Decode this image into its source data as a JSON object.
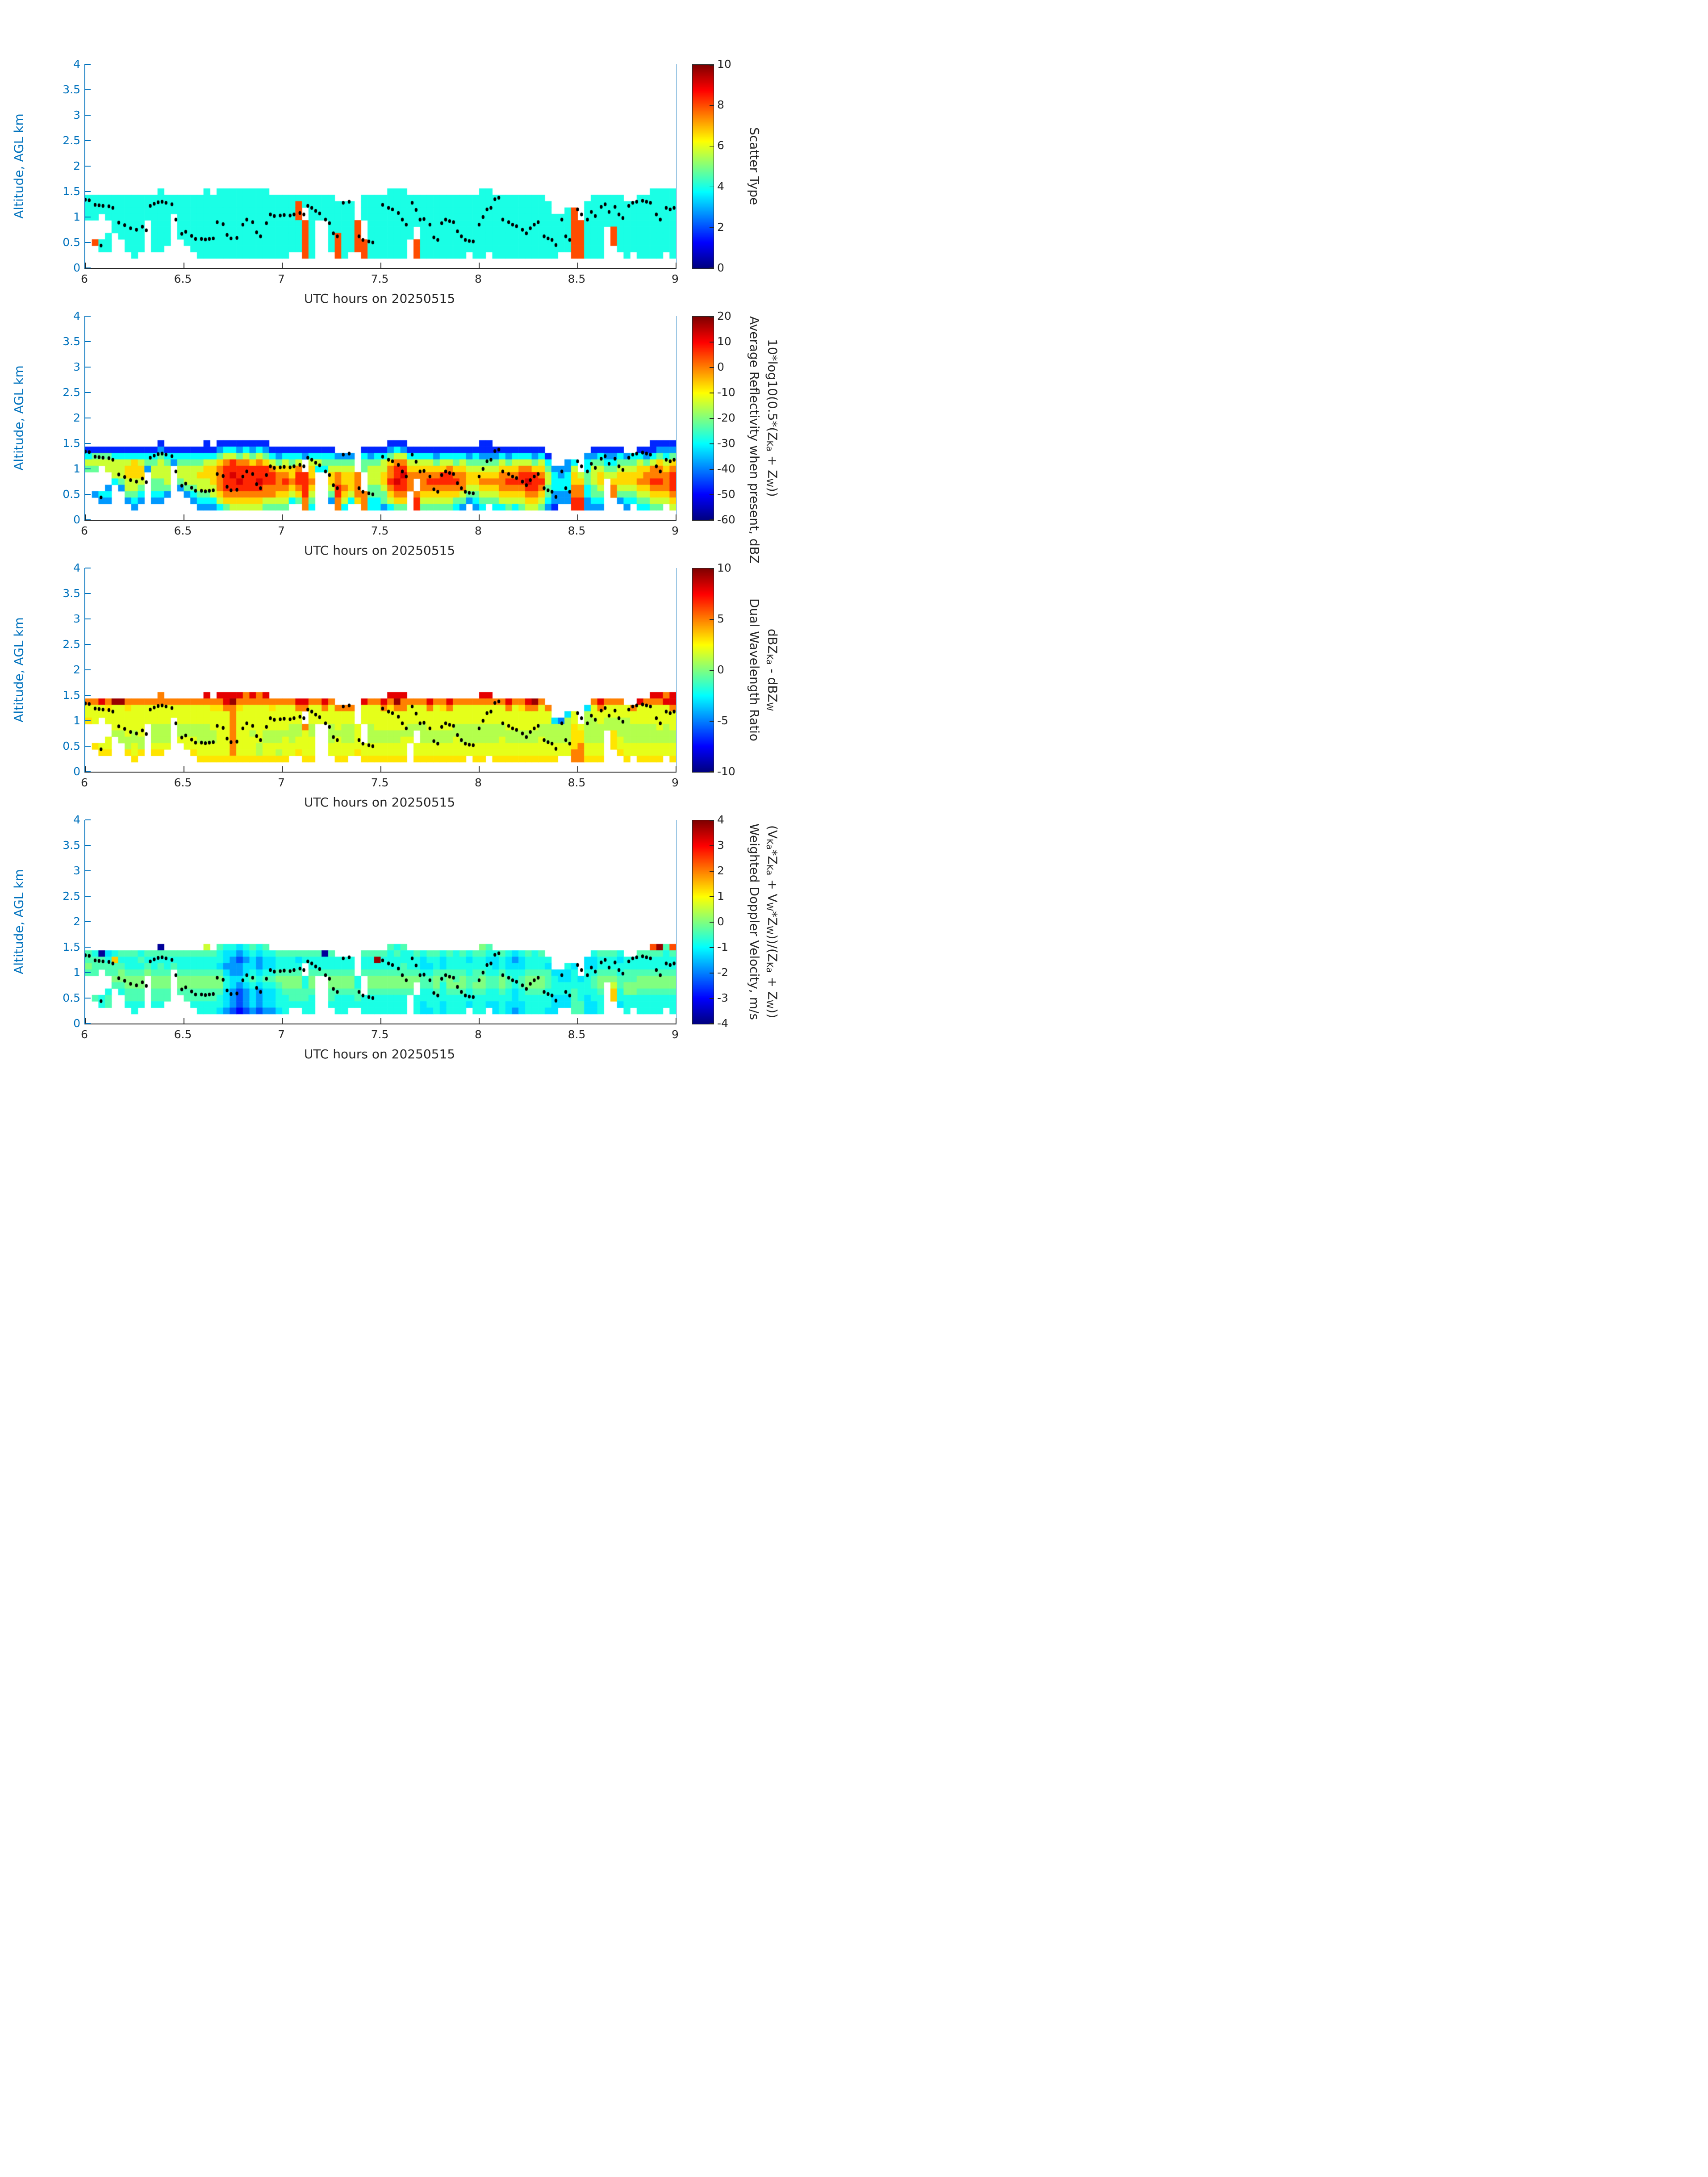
{
  "figure": {
    "background": "#ffffff",
    "date_tag": "20250515"
  },
  "axes": {
    "ylabel": "Altitude, AGL km",
    "xlabel": "UTC hours on 20250515",
    "ylim": [
      0,
      4
    ],
    "xlim": [
      6,
      9
    ],
    "yticks": [
      {
        "v": 4,
        "label": "4"
      },
      {
        "v": 3.5,
        "label": "3.5"
      },
      {
        "v": 3,
        "label": "3"
      },
      {
        "v": 2.5,
        "label": "2.5"
      },
      {
        "v": 2,
        "label": "2"
      },
      {
        "v": 1.5,
        "label": "1.5"
      },
      {
        "v": 1,
        "label": "1"
      },
      {
        "v": 0.5,
        "label": "0.5"
      },
      {
        "v": 0,
        "label": "0"
      }
    ],
    "xticks": [
      {
        "v": 6,
        "label": "6"
      },
      {
        "v": 6.5,
        "label": "6.5"
      },
      {
        "v": 7,
        "label": "7"
      },
      {
        "v": 7.5,
        "label": "7.5"
      },
      {
        "v": 8,
        "label": "8"
      },
      {
        "v": 8.5,
        "label": "8.5"
      },
      {
        "v": 9,
        "label": "9"
      }
    ],
    "colors": {
      "axis_blue": "#0072BD",
      "axis_dark": "#262626",
      "dot": "#000000",
      "colormap": "jet"
    }
  },
  "dot_overlay": {
    "description": "black dot overlay track, [UTC hour, altitude km], same in all panels",
    "points": [
      [
        6.0,
        1.34
      ],
      [
        6.02,
        1.33
      ],
      [
        6.05,
        1.24
      ],
      [
        6.07,
        1.23
      ],
      [
        6.08,
        0.44
      ],
      [
        6.09,
        1.22
      ],
      [
        6.12,
        1.21
      ],
      [
        6.14,
        1.18
      ],
      [
        6.17,
        0.89
      ],
      [
        6.2,
        0.84
      ],
      [
        6.23,
        0.78
      ],
      [
        6.26,
        0.75
      ],
      [
        6.29,
        0.81
      ],
      [
        6.31,
        0.74
      ],
      [
        6.33,
        1.22
      ],
      [
        6.35,
        1.26
      ],
      [
        6.37,
        1.29
      ],
      [
        6.39,
        1.3
      ],
      [
        6.41,
        1.28
      ],
      [
        6.44,
        1.25
      ],
      [
        6.46,
        0.95
      ],
      [
        6.49,
        0.67
      ],
      [
        6.51,
        0.71
      ],
      [
        6.54,
        0.63
      ],
      [
        6.56,
        0.57
      ],
      [
        6.59,
        0.57
      ],
      [
        6.61,
        0.56
      ],
      [
        6.63,
        0.57
      ],
      [
        6.65,
        0.58
      ],
      [
        6.67,
        0.9
      ],
      [
        6.7,
        0.86
      ],
      [
        6.72,
        0.65
      ],
      [
        6.74,
        0.58
      ],
      [
        6.77,
        0.59
      ],
      [
        6.8,
        0.85
      ],
      [
        6.82,
        0.95
      ],
      [
        6.85,
        0.9
      ],
      [
        6.87,
        0.7
      ],
      [
        6.89,
        0.62
      ],
      [
        6.92,
        0.88
      ],
      [
        6.94,
        1.05
      ],
      [
        6.96,
        1.02
      ],
      [
        6.99,
        1.03
      ],
      [
        7.01,
        1.04
      ],
      [
        7.04,
        1.03
      ],
      [
        7.06,
        1.05
      ],
      [
        7.09,
        1.08
      ],
      [
        7.11,
        1.05
      ],
      [
        7.13,
        1.22
      ],
      [
        7.15,
        1.18
      ],
      [
        7.17,
        1.12
      ],
      [
        7.19,
        1.07
      ],
      [
        7.22,
        0.95
      ],
      [
        7.24,
        0.88
      ],
      [
        7.26,
        0.68
      ],
      [
        7.28,
        0.62
      ],
      [
        7.31,
        1.28
      ],
      [
        7.34,
        1.3
      ],
      [
        7.39,
        0.62
      ],
      [
        7.41,
        0.55
      ],
      [
        7.44,
        0.52
      ],
      [
        7.46,
        0.5
      ],
      [
        7.51,
        1.24
      ],
      [
        7.54,
        1.18
      ],
      [
        7.56,
        1.15
      ],
      [
        7.59,
        1.08
      ],
      [
        7.61,
        0.95
      ],
      [
        7.63,
        0.85
      ],
      [
        7.66,
        1.28
      ],
      [
        7.68,
        1.14
      ],
      [
        7.7,
        0.95
      ],
      [
        7.72,
        0.96
      ],
      [
        7.75,
        0.85
      ],
      [
        7.77,
        0.6
      ],
      [
        7.79,
        0.55
      ],
      [
        7.81,
        0.88
      ],
      [
        7.83,
        0.95
      ],
      [
        7.85,
        0.92
      ],
      [
        7.87,
        0.9
      ],
      [
        7.89,
        0.72
      ],
      [
        7.91,
        0.62
      ],
      [
        7.93,
        0.55
      ],
      [
        7.95,
        0.53
      ],
      [
        7.97,
        0.52
      ],
      [
        8.0,
        0.85
      ],
      [
        8.02,
        1.0
      ],
      [
        8.04,
        1.15
      ],
      [
        8.06,
        1.18
      ],
      [
        8.08,
        1.35
      ],
      [
        8.1,
        1.38
      ],
      [
        8.12,
        0.95
      ],
      [
        8.15,
        0.9
      ],
      [
        8.17,
        0.85
      ],
      [
        8.19,
        0.82
      ],
      [
        8.22,
        0.75
      ],
      [
        8.24,
        0.68
      ],
      [
        8.26,
        0.78
      ],
      [
        8.28,
        0.85
      ],
      [
        8.3,
        0.9
      ],
      [
        8.33,
        0.62
      ],
      [
        8.35,
        0.58
      ],
      [
        8.37,
        0.55
      ],
      [
        8.39,
        0.45
      ],
      [
        8.42,
        0.95
      ],
      [
        8.44,
        0.62
      ],
      [
        8.46,
        0.55
      ],
      [
        8.5,
        1.15
      ],
      [
        8.52,
        1.05
      ],
      [
        8.55,
        0.95
      ],
      [
        8.57,
        1.1
      ],
      [
        8.59,
        1.02
      ],
      [
        8.62,
        1.2
      ],
      [
        8.64,
        1.25
      ],
      [
        8.66,
        1.1
      ],
      [
        8.69,
        1.2
      ],
      [
        8.71,
        1.05
      ],
      [
        8.73,
        0.98
      ],
      [
        8.76,
        1.22
      ],
      [
        8.78,
        1.28
      ],
      [
        8.8,
        1.3
      ],
      [
        8.83,
        1.32
      ],
      [
        8.85,
        1.3
      ],
      [
        8.87,
        1.28
      ],
      [
        8.9,
        1.05
      ],
      [
        8.92,
        0.95
      ],
      [
        8.95,
        1.18
      ],
      [
        8.97,
        1.15
      ],
      [
        8.99,
        1.18
      ]
    ]
  },
  "chart_data": [
    {
      "type": "heatmap",
      "name": "scatter_type",
      "colorbar": {
        "vmin": 0,
        "vmax": 10,
        "ticks": [
          10,
          8,
          6,
          4,
          2,
          0
        ],
        "label_line1": "Scatter Type",
        "label_lines": [
          "Scatter Type"
        ]
      },
      "grid": {
        "n_cols": 90,
        "t_start_hours": 6.0,
        "t_step_hours": 0.033333,
        "n_rows": 11,
        "alt_top_km": 1.5625,
        "row_step_km": 0.125,
        "value_map": {
          ".": null,
          "c": 4,
          "r": 8
        },
        "columns": [
          ".cccc......",
          ".cccc...r..",
          ".ccc....cc.",
          ".cccc..ccc.",
          ".cccccc....",
          ".ccccccc...",
          ".ccccccccc.",
          ".cccccccccc",
          ".ccccccccc.",
          ".cccc......",
          ".ccccccccc.",
          "cccccccccc.",
          ".cccccccc..",
          ".ccc.......",
          ".ccccccc...",
          ".cccccccc..",
          ".ccccccccc.",
          ".cccccccccc",
          "ccccccccccc",
          ".cccccccccc",
          "ccccccccccc",
          "ccccccccccc",
          "ccccccccccc",
          "ccccccccccc",
          "ccccccccccc",
          "ccccccccccc",
          "ccccccccccc",
          "ccccccccccc",
          ".cccccccccc",
          ".cccccccccc",
          ".cccccccccc",
          ".ccccccccc.",
          ".crrrccccc.",
          ".cc..rrrrrr",
          ".cccccccccc",
          ".cccc......",
          ".cccc......",
          ".ccccccccc.",
          "..cccccrrrr",
          "..ccccccccc",
          "..cccccccc.",
          ".....rrrrr.",
          ".cccc...rrr",
          ".cccccccccc",
          ".cccccccccc",
          ".cccccccccc",
          "ccccccccccc",
          "ccccccccccc",
          "ccccccccccc",
          ".ccccccc...",
          ".ccccc..rrr",
          ".cccccccccc",
          ".cccccccccc",
          ".cccccccccc",
          ".cccccccccc",
          ".cccccccccc",
          ".cccccccccc",
          ".cccccccccc",
          ".ccccccccc.",
          ".cccccccccc",
          "ccccccccccc",
          "cccccccccc.",
          ".cccccccccc",
          ".cccccccccc",
          ".cccccccccc",
          ".cccccccccc",
          ".cccccccccc",
          ".cccccccccc",
          ".cccccccccc",
          ".cccccccccc",
          "..ccccccccc",
          "....ccccccc",
          "....cccccc.",
          "...ccccccc.",
          "...rrrrrrrr",
          ".....rrrrrr",
          "..ccccccccc",
          ".cccccccccc",
          ".cccccccccc",
          ".ccccc.....",
          ".cccccrrr..",
          ".ccccccccc.",
          "..ccccccccc",
          "..cccccccc.",
          ".cccccccccc",
          ".cccccccccc",
          "ccccccccccc",
          "ccccccccccc",
          "cccccccccc.",
          "ccccccccccc"
        ]
      }
    },
    {
      "type": "heatmap",
      "name": "average_reflectivity_dbz",
      "colorbar": {
        "vmin": -60,
        "vmax": 20,
        "ticks": [
          20,
          10,
          0,
          -10,
          -20,
          -30,
          -40,
          -50,
          -60
        ],
        "label_line1": "Average Reflectivity when present, dBZ",
        "label_line2_html": "10*log10(0.5*(Z<sub>Ka</sub> + Z<sub>W</sub>))",
        "label_lines": [
          "Average Reflectivity when present, dBZ",
          "10*log10(0.5*(Z_Ka + Z_W))"
        ]
      },
      "grid": {
        "n_cols": 90,
        "t_start_hours": 6.0,
        "t_step_hours": 0.033333,
        "n_rows": 11,
        "alt_top_km": 1.5625,
        "row_step_km": 0.125,
        "value_map": {
          ".": null,
          "0": -55,
          "1": -47,
          "2": -38,
          "3": -30,
          "4": -22,
          "5": -14,
          "6": -7,
          "7": 0,
          "8": 7,
          "9": 13
        },
        "columns": [
          ".1354......",
          ".1454...2..",
          ".145....32.",
          ".1455..232.",
          ".135553....",
          ".1355542...",
          ".135665542.",
          ".1366655432",
          ".135665432.",
          ".1342......",
          ".134554432.",
          "1245554432.",
          ".13455542..",
          ".132.......",
          ".1345542...",
          ".13455542..",
          ".134555432.",
          ".1345655432",
          "11356655432",
          ".1356665532",
          "12467777653",
          "13578888764",
          "13588988765",
          "12478898765",
          "13578888765",
          "12468888765",
          "13578898765",
          "12468887754",
          ".1357887754",
          ".1246777654",
          ".1356787654",
          ".134667653.",
          ".135788764.",
          ".12..888877",
          ".1356676543",
          ".1353......",
          ".1343......",
          ".134566542.",
          "..245778877",
          "..245667653",
          "..24566653.",
          ".....77776.",
          ".1344...777",
          ".1245554433",
          ".1345554433",
          ".1355665442",
          "12467787653",
          "13578898764",
          "12578988764",
          ".1356777...",
          ".13567..788",
          ".1356777654",
          ".1356787654",
          ".1246787654",
          ".1356887654",
          ".1357887654",
          ".1346787643",
          ".1356777542",
          ".124566542.",
          ".1345665432",
          "11245676543",
          "1124567654.",
          ".1245676543",
          ".1356777653",
          ".1246787654",
          ".1356787653",
          ".1357887654",
          ".1357898765",
          ".1246888765",
          ".1356787654",
          "..134554432",
          "....2333221",
          "....223322.",
          "...2233322.",
          "...35667788",
          ".....567788",
          "..233443322",
          ".1245554432",
          ".1345665432",
          ".12345.....",
          ".12345677..",
          ".134566542.",
          "..245665432",
          "..34566543.",
          ".1356676543",
          ".1246776543",
          "11357787654",
          "12467787654",
          "1235677765.",
          "12467888765"
        ]
      }
    },
    {
      "type": "heatmap",
      "name": "dual_wavelength_ratio",
      "colorbar": {
        "vmin": -10,
        "vmax": 10,
        "ticks": [
          10,
          5,
          0,
          -5,
          -10
        ],
        "label_line1": "Dual Wavelength Ratio",
        "label_line2_html": "dBZ<sub>Ka</sub> - dBZ<sub>W</sub>",
        "label_lines": [
          "Dual Wavelength Ratio",
          "dBZ_Ka - dBZ_W"
        ]
      },
      "grid": {
        "n_cols": 90,
        "t_start_hours": 6.0,
        "t_step_hours": 0.033333,
        "n_rows": 11,
        "alt_top_km": 1.5625,
        "row_step_km": 0.125,
        "value_map": {
          ".": null,
          "0": -8,
          "1": -5,
          "2": -3,
          "3": -1.5,
          "4": 0,
          "5": 1,
          "6": 2,
          "7": 3,
          "8": 5,
          "9": 8,
          "a": 9.5
        },
        "columns": [
          ".8667......",
          ".8666...7..",
          ".966....67.",
          ".8766..667.",
          ".a66665....",
          ".a666655...",
          ".876666557.",
          ".8666655667",
          ".866666557.",
          ".8666......",
          ".866655567.",
          "8866655567.",
          ".86665556..",
          ".866.......",
          ".8666556...",
          ".86665566..",
          ".866655667.",
          ".8666555667",
          "98666555667",
          ".8766655667",
          "98766666667",
          "99866666667",
          "9a888888887",
          "98766666667",
          "88666666667",
          "98666656667",
          "88666666557",
          "98666655667",
          ".8766655667",
          ".8666655657",
          ".8666656667",
          ".866655566.",
          ".986655667.",
          ".98..866667",
          ".8666556667",
          ".8666......",
          ".9866......",
          ".866655566.",
          "..866656667",
          "..866555667",
          "..86655566.",
          ".....66667.",
          ".9666...667",
          ".8666555667",
          ".8666655667",
          ".9866655667",
          "98766655667",
          "9a866655667",
          "98866656667",
          ".8666556...",
          ".86665..667",
          ".8666555667",
          ".9866655667",
          ".8666655667",
          ".8766655667",
          ".9866655667",
          ".8666556667",
          ".8666555667",
          ".866655566.",
          ".8666555667",
          "98666555667",
          "9866655566.",
          ".8666555667",
          ".8666556667",
          ".9866655667",
          ".8666655667",
          ".8766655667",
          ".9866655667",
          ".a866655667",
          ".8666556667",
          "..866555667",
          "....2555667",
          "....155566.",
          "...2555566.",
          "...66777788",
          ".....677888",
          "..255555667",
          ".8665555667",
          ".9866555667",
          ".86655.....",
          ".86655777..",
          ".866555667.",
          "..665555667",
          "..86655566.",
          ".9666555667",
          ".8666555667",
          "98666555667",
          "98666655667",
          "8966655566.",
          "99866655667"
        ]
      }
    },
    {
      "type": "heatmap",
      "name": "weighted_doppler_velocity",
      "colorbar": {
        "vmin": -4,
        "vmax": 4,
        "ticks": [
          4,
          3,
          2,
          1,
          0,
          -1,
          -2,
          -3,
          -4
        ],
        "label_line1": "Weighted Doppler Velocity, m/s",
        "label_line2_html": "(V<sub>Ka</sub>*Z<sub>Ka</sub> + V<sub>W</sub>*Z<sub>W</sub>))/(Z<sub>Ka</sub> + Z<sub>W</sub>))",
        "label_lines": [
          "Weighted Doppler Velocity, m/s",
          "(V_Ka*Z_Ka + V_W*Z_W))/(Z_Ka + Z_W))"
        ]
      },
      "grid": {
        "n_cols": 90,
        "t_start_hours": 6.0,
        "t_step_hours": 0.033333,
        "n_rows": 11,
        "alt_top_km": 1.5625,
        "row_step_km": 0.125,
        "value_map": {
          ".": null,
          "b": -3.8,
          "0": -3,
          "1": -2.4,
          "2": -1.8,
          "3": -1.2,
          "4": -0.8,
          "5": -0.4,
          "6": 0,
          "7": 0.6,
          "8": 1.4,
          "9": 2.4,
          "a": 3.8
        },
        "columns": [
          ".5565......",
          ".4555...5..",
          ".b55....44.",
          ".3455..455.",
          ".485565....",
          ".5456654...",
          ".544566554.",
          ".5445665544",
          ".454566554.",
          ".5456......",
          ".544566554.",
          "b545566554.",
          ".54456655..",
          ".545.......",
          ".5445665...",
          ".54456655..",
          ".544566554.",
          ".5445665544",
          "75445665544",
          ".5445665544",
          "54435665443",
          "43323443332",
          "43222332221",
          "32122321110",
          "43233432221",
          "54334543332",
          "43223432221",
          "54334543332",
          ".4334543332",
          ".5445654443",
          ".5445665444",
          ".544566554.",
          ".534566554.",
          ".54..445544",
          ".5445665444",
          ".5445......",
          ".b445......",
          ".544566554.",
          "..445665444",
          "..445665444",
          "..44566544.",
          ".....44554.",
          ".5445...444",
          ".5445665444",
          ".5a45665444",
          ".5445665444",
          "54445665444",
          "45445665444",
          "54455665444",
          ".4445665...",
          ".54456..444",
          ".4334554433",
          ".5434554443",
          ".5445665444",
          ".4335544433",
          ".5445665444",
          ".4445565444",
          ".5445665444",
          ".434455443.",
          ".5445565444",
          "65445665444",
          "5434455443.",
          ".4334554433",
          ".5445665444",
          ".4334554433",
          ".3234443332",
          ".4334554433",
          ".5445665444",
          ".4445665444",
          ".5445665444",
          "..435554443",
          "....3444333",
          "....334433.",
          "...4334433.",
          "...34445555",
          ".....344455",
          "..334444333",
          ".4334554433",
          ".5445665444",
          ".54456.....",
          ".54456788..",
          ".434455443.",
          "..445566444",
          "..44556644.",
          ".5445665444",
          ".5445665444",
          "95445665444",
          "a5445665444",
          "5444566544.",
          "95445665444"
        ]
      }
    }
  ]
}
